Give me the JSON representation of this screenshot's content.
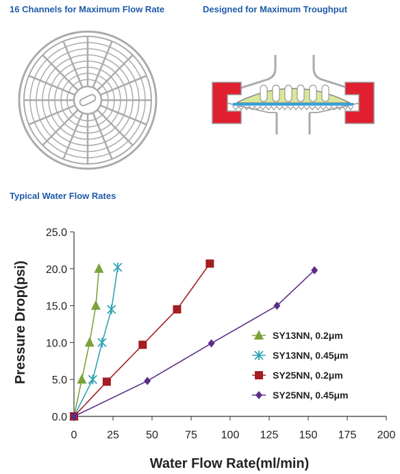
{
  "headings": {
    "channels": "16 Channels for Maximum Flow Rate",
    "throughput": "Designed for Maximum Troughput",
    "water_flow": "Typical Water Flow Rates"
  },
  "colors": {
    "heading": "#1f5aa8",
    "housing_red": "#e02030",
    "membrane_green": "#d8e89a",
    "membrane_blue": "#3aa0d8"
  },
  "chart_data": {
    "type": "line",
    "xlabel": "Water Flow Rate(ml/min)",
    "ylabel": "Pressure Drop(psi)",
    "xlim": [
      0,
      200
    ],
    "ylim": [
      0,
      25
    ],
    "x_ticks": [
      "0",
      "25",
      "50",
      "75",
      "100",
      "125",
      "150",
      "175",
      "200"
    ],
    "y_ticks": [
      "0.0",
      "5.0",
      "10.0",
      "15.0",
      "20.0",
      "25.0"
    ],
    "grid": false,
    "legend_position": "right",
    "series": [
      {
        "name": "SY13NN, 0.2μm",
        "color": "#7aa23a",
        "marker": "triangle",
        "points": [
          [
            0,
            0
          ],
          [
            5,
            5
          ],
          [
            10,
            10
          ],
          [
            14,
            15
          ],
          [
            16,
            20
          ]
        ]
      },
      {
        "name": "SY13NN, 0.45μm",
        "color": "#2fa3b4",
        "marker": "x",
        "points": [
          [
            0,
            0
          ],
          [
            12,
            5
          ],
          [
            18,
            10
          ],
          [
            24,
            14.5
          ],
          [
            28,
            20.2
          ]
        ]
      },
      {
        "name": "SY25NN, 0.2μm",
        "color": "#a31d22",
        "marker": "square",
        "points": [
          [
            0,
            0
          ],
          [
            21,
            4.7
          ],
          [
            44,
            9.7
          ],
          [
            66,
            14.5
          ],
          [
            87,
            20.7
          ]
        ]
      },
      {
        "name": "SY25NN, 0.45μm",
        "color": "#5b2d86",
        "marker": "diamond",
        "points": [
          [
            0,
            0
          ],
          [
            47,
            4.8
          ],
          [
            88,
            9.9
          ],
          [
            130,
            15
          ],
          [
            154,
            19.8
          ]
        ]
      }
    ]
  }
}
